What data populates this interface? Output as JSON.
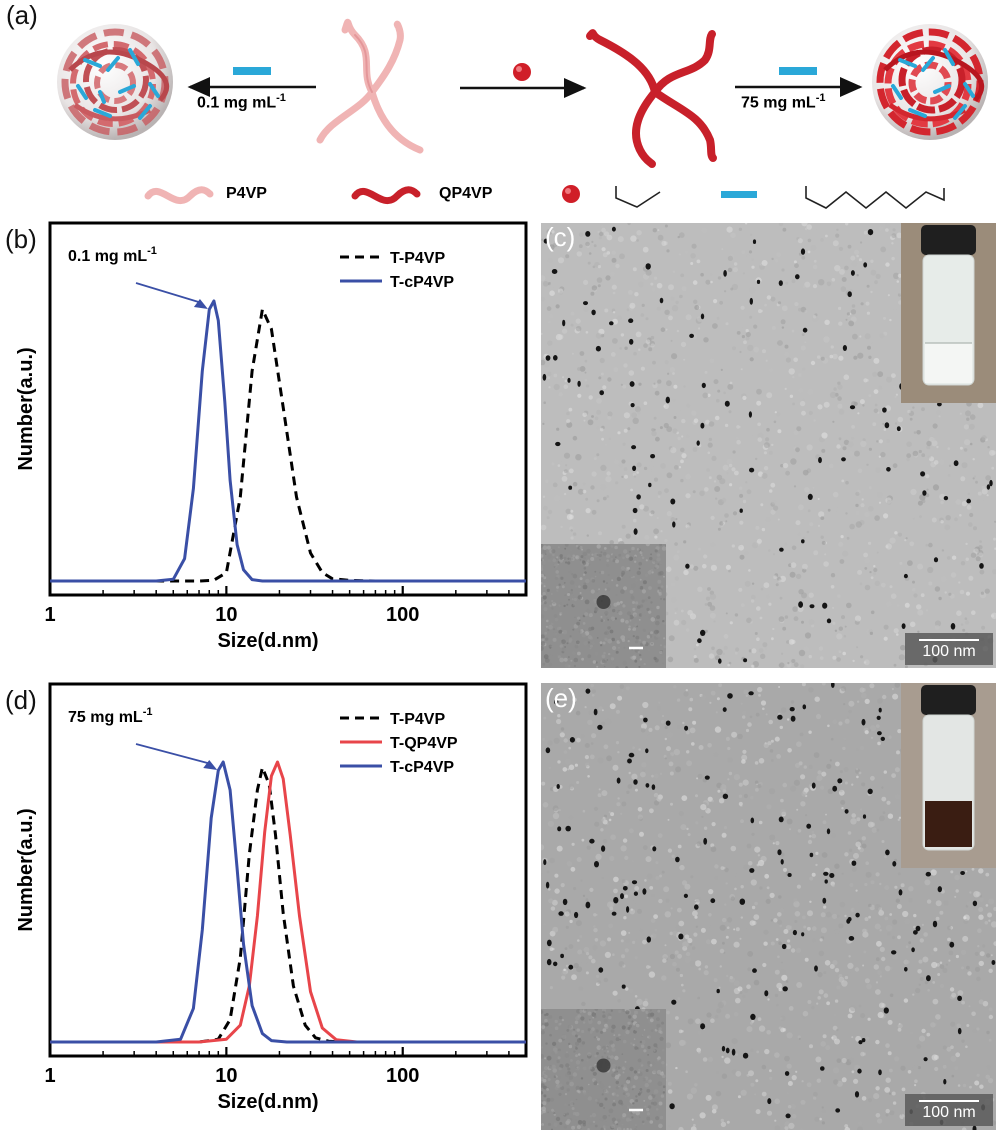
{
  "panel_a": {
    "letter": "(a)",
    "left_arrow": {
      "label": "0.1 mg mL",
      "sup": "-1"
    },
    "right_arrow": {
      "label": "75 mg mL",
      "sup": "-1"
    },
    "legend": {
      "p4vp": "P4VP",
      "qp4vp": "QP4VP"
    }
  },
  "panel_c": {
    "letter": "(c)",
    "scale_text": "100 nm"
  },
  "panel_e": {
    "letter": "(e)",
    "scale_text": "100 nm"
  },
  "colors": {
    "blue": "#3a4fa6",
    "red": "#e8454a",
    "black": "#000000",
    "cyan": "#2aa8d8",
    "dark_red": "#c8202a",
    "light_pink": "#f0b4b4"
  },
  "chart_data": [
    {
      "panel_letter": "(b)",
      "type": "line",
      "annotation": {
        "text": "0.1 mg mL",
        "sup": "-1"
      },
      "xlabel": "Size(d.nm)",
      "ylabel": "Number(a.u.)",
      "xscale": "log",
      "xlim": [
        1,
        500
      ],
      "ylim": [
        0,
        1.1
      ],
      "xticks": [
        "1",
        "10",
        "100"
      ],
      "legend_position": "top-right",
      "series": [
        {
          "name": "T-P4VP",
          "style": "dashed",
          "color": "#000000",
          "x": [
            5,
            7,
            8.5,
            10,
            12,
            14,
            16,
            18,
            21,
            25,
            30,
            35,
            40,
            50,
            70
          ],
          "y": [
            0,
            0,
            0.003,
            0.03,
            0.3,
            0.75,
            0.97,
            0.9,
            0.62,
            0.3,
            0.1,
            0.03,
            0.008,
            0.002,
            0
          ]
        },
        {
          "name": "T-cP4VP",
          "style": "solid",
          "color": "#3a4fa6",
          "x": [
            4,
            5,
            5.8,
            6.5,
            7.3,
            8,
            8.5,
            9,
            9.8,
            10.5,
            11.5,
            12.5,
            14,
            16
          ],
          "y": [
            0,
            0.006,
            0.08,
            0.33,
            0.75,
            0.97,
            1.0,
            0.93,
            0.64,
            0.36,
            0.13,
            0.04,
            0.005,
            0
          ]
        }
      ]
    },
    {
      "panel_letter": "(d)",
      "type": "line",
      "annotation": {
        "text": "75 mg mL",
        "sup": "-1"
      },
      "xlabel": "Size(d.nm)",
      "ylabel": "Number(a.u.)",
      "xscale": "log",
      "xlim": [
        1,
        500
      ],
      "ylim": [
        0,
        1.1
      ],
      "xticks": [
        "1",
        "10",
        "100"
      ],
      "legend_position": "top-right",
      "series": [
        {
          "name": "T-P4VP",
          "style": "dashed",
          "color": "#000000",
          "x": [
            7,
            9,
            10.5,
            12,
            13.5,
            15,
            16,
            17.5,
            19,
            21,
            24,
            28,
            32,
            38,
            45
          ],
          "y": [
            0,
            0.01,
            0.08,
            0.3,
            0.67,
            0.9,
            0.98,
            0.92,
            0.74,
            0.46,
            0.2,
            0.06,
            0.015,
            0.003,
            0
          ]
        },
        {
          "name": "T-QP4VP",
          "style": "solid",
          "color": "#e8454a",
          "x": [
            7,
            10,
            12,
            13.5,
            15,
            16.5,
            18,
            19.5,
            21,
            23,
            26,
            30,
            35,
            42,
            55
          ],
          "y": [
            0,
            0.01,
            0.06,
            0.2,
            0.45,
            0.75,
            0.95,
            1.0,
            0.94,
            0.74,
            0.45,
            0.18,
            0.05,
            0.008,
            0
          ]
        },
        {
          "name": "T-cP4VP",
          "style": "solid",
          "color": "#3a4fa6",
          "x": [
            4,
            5.5,
            6.5,
            7.3,
            8.2,
            9,
            9.6,
            10.5,
            11.5,
            12.5,
            14,
            16,
            18,
            22
          ],
          "y": [
            0,
            0.01,
            0.12,
            0.4,
            0.8,
            0.97,
            1.0,
            0.9,
            0.62,
            0.35,
            0.13,
            0.03,
            0.005,
            0
          ]
        }
      ]
    }
  ]
}
